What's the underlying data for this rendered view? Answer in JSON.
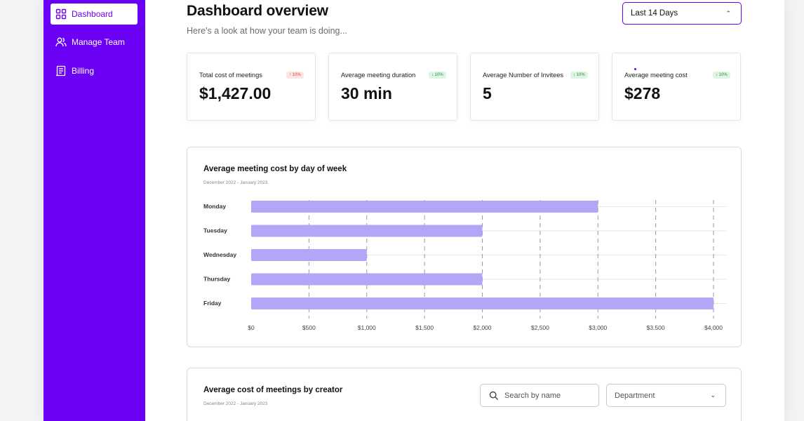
{
  "sidebar": {
    "items": [
      {
        "label": "Dashboard",
        "icon": "grid-icon"
      },
      {
        "label": "Manage Team",
        "icon": "users-icon"
      },
      {
        "label": "Billing",
        "icon": "receipt-icon"
      }
    ],
    "accent": "#6a00f4"
  },
  "header": {
    "title": "Dashboard overview",
    "subtitle": "Here's a look at how your team is doing...",
    "date_range": "Last 14 Days"
  },
  "stats": [
    {
      "label": "Total cost of meetings",
      "value": "$1,427.00",
      "badge": "↑ 10%",
      "trend": "up"
    },
    {
      "label": "Average meeting duration",
      "value": "30 min",
      "badge": "↓ 10%",
      "trend": "down"
    },
    {
      "label": "Average Number of Invitees",
      "value": "5",
      "badge": "↓ 10%",
      "trend": "down"
    },
    {
      "label": "Average meeting cost",
      "value": "$278",
      "badge": "↓ 10%",
      "trend": "down"
    }
  ],
  "day_chart": {
    "title": "Average meeting cost by day of week",
    "subtitle": "December 2022 - January 2023"
  },
  "creator_panel": {
    "title": "Average cost of meetings by creator",
    "subtitle": "December 2022 - January 2023",
    "search_placeholder": "Search by name",
    "department_label": "Department"
  },
  "chart_data": {
    "type": "bar",
    "orientation": "horizontal",
    "categories": [
      "Monday",
      "Tuesday",
      "Wednesday",
      "Thursday",
      "Friday"
    ],
    "values": [
      3000,
      2000,
      1000,
      2000,
      4000
    ],
    "ticks": [
      "$0",
      "$500",
      "$1,000",
      "$1,500",
      "$2,000",
      "$2,500",
      "$3,000",
      "$3.500",
      "$4,000"
    ],
    "tick_values": [
      0,
      500,
      1000,
      1500,
      2000,
      2500,
      3000,
      3500,
      4000
    ],
    "xlim": [
      0,
      4000
    ],
    "title": "Average meeting cost by day of week",
    "bar_color": "#b3a6f7",
    "grid": true
  }
}
